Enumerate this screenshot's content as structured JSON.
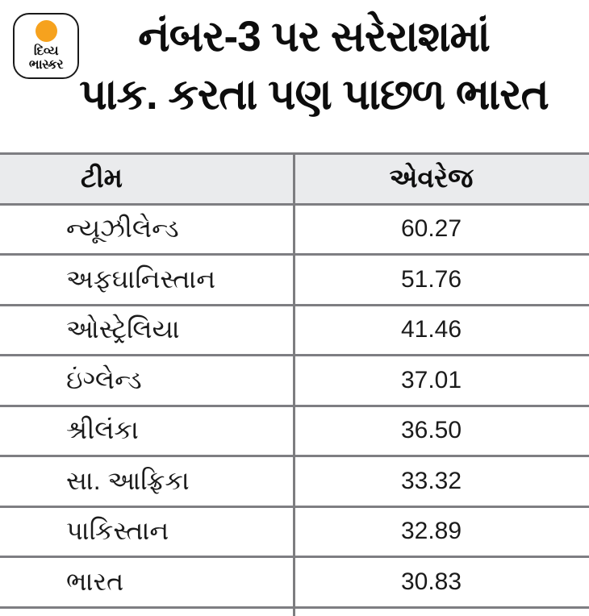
{
  "logo": {
    "line1": "દિવ્ય",
    "line2": "ભાસ્કર",
    "circle_color": "#F6A21E"
  },
  "headline": {
    "line1": "નંબર-3 પર સરેરાશમાં",
    "line2": "પાક. કરતા પણ પાછળ ભારત"
  },
  "table": {
    "headers": {
      "team": "ટીમ",
      "average": "એવરેજ"
    },
    "rows": [
      {
        "team": "ન્યૂઝીલેન્ડ",
        "average": "60.27"
      },
      {
        "team": "અફઘાનિસ્તાન",
        "average": "51.76"
      },
      {
        "team": "ઓસ્ટ્રેલિયા",
        "average": "41.46"
      },
      {
        "team": "ઇંગ્લેન્ડ",
        "average": "37.01"
      },
      {
        "team": "શ્રીલંકા",
        "average": "36.50"
      },
      {
        "team": "સા. આફ્રિકા",
        "average": "33.32"
      },
      {
        "team": "પાકિસ્તાન",
        "average": "32.89"
      },
      {
        "team": "ભારત",
        "average": "30.83"
      }
    ]
  },
  "colors": {
    "header_bg": "#eaebed",
    "border": "#7e7e82",
    "text": "#141414",
    "logo_orange": "#F6A21E"
  },
  "chart_data": {
    "type": "table",
    "title": "નંબર-3 પર સરેરાશમાં પાક. કરતા પણ પાછળ ભારત",
    "columns": [
      "ટીમ",
      "એવરેજ"
    ],
    "categories": [
      "ન્યૂઝીલેન્ડ",
      "અફઘાનિસ્તાન",
      "ઓસ્ટ્રેલિયા",
      "ઇંગ્લેન્ડ",
      "શ્રીલંકા",
      "સા. આફ્રિકા",
      "પાકિસ્તાન",
      "ભારત"
    ],
    "values": [
      60.27,
      51.76,
      41.46,
      37.01,
      36.5,
      33.32,
      32.89,
      30.83
    ]
  }
}
